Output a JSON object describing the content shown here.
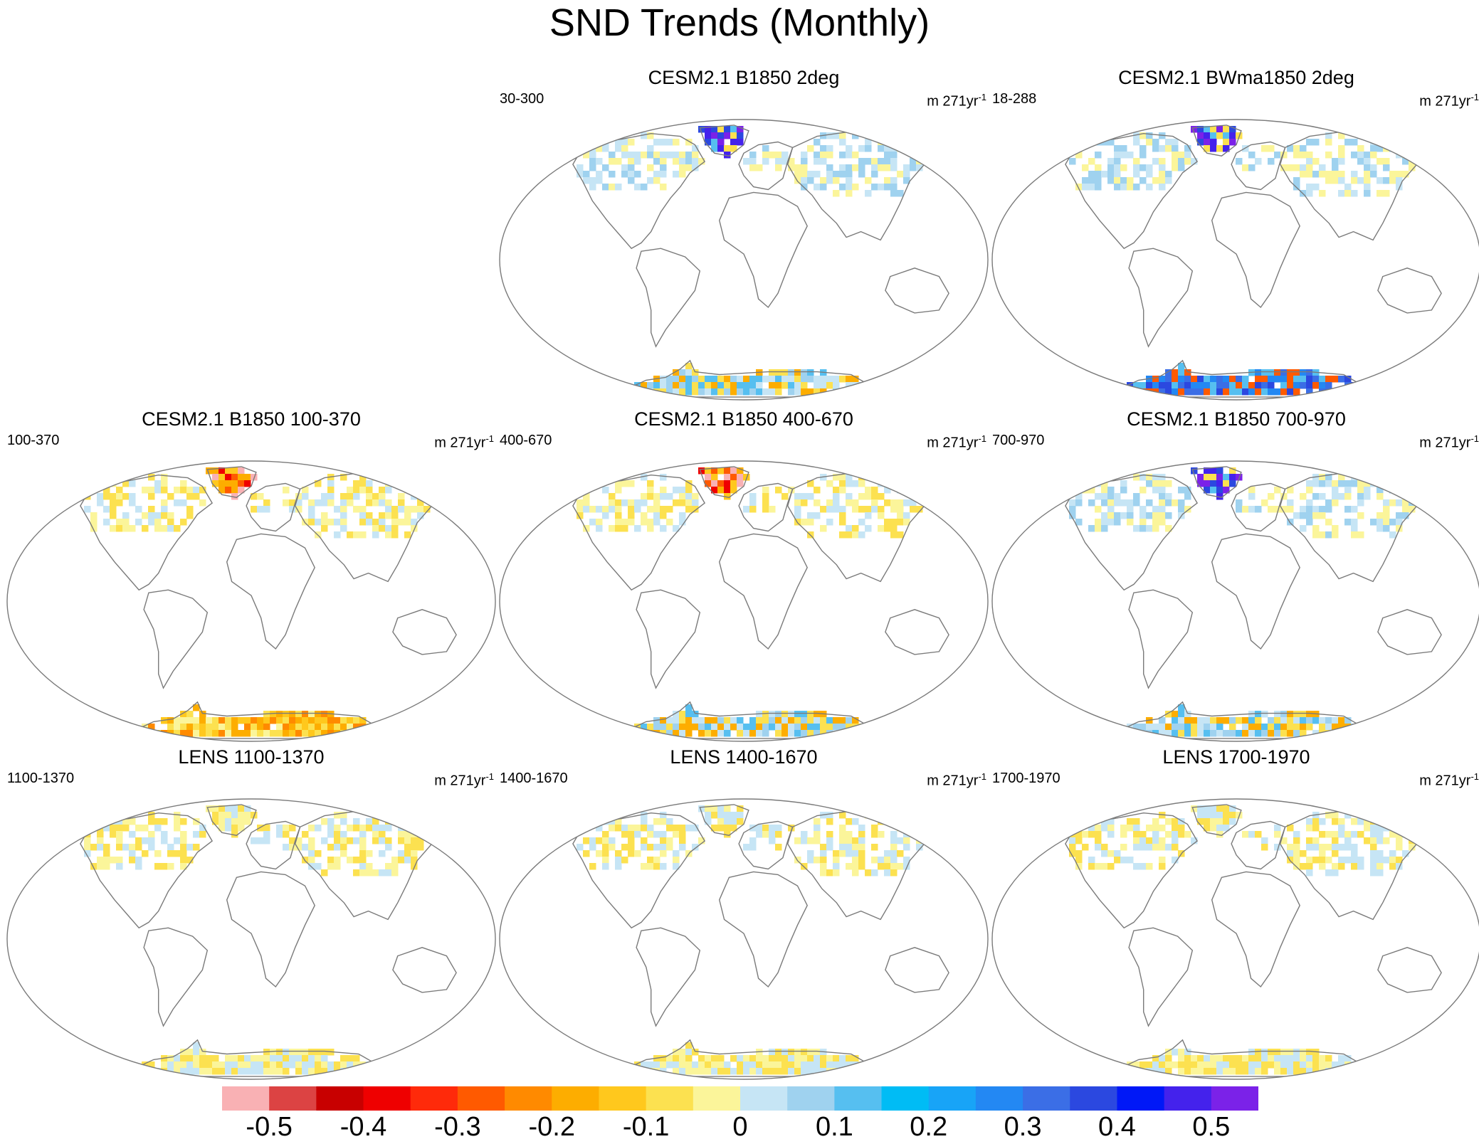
{
  "title": "SND Trends (Monthly)",
  "units_base": "m 271yr",
  "units_exp": "-1",
  "panels": [
    {
      "id": "p1",
      "title": "CESM2.1 B1850 2deg",
      "range": "30-300",
      "greenland": "blue",
      "antarctica": "mixed-orange-blue",
      "land": "mixed-blue"
    },
    {
      "id": "p2",
      "title": "CESM2.1 BWma1850 2deg",
      "range": "18-288",
      "greenland": "blue",
      "antarctica": "strong-blue",
      "land": "mixed-blue"
    },
    {
      "id": "p3",
      "title": "CESM2.1 B1850 100-370",
      "range": "100-370",
      "greenland": "red",
      "antarctica": "orange",
      "land": "mixed-yellow"
    },
    {
      "id": "p4",
      "title": "CESM2.1 B1850 400-670",
      "range": "400-670",
      "greenland": "red",
      "antarctica": "mixed-orange-blue",
      "land": "mixed-yellow"
    },
    {
      "id": "p5",
      "title": "CESM2.1 B1850 700-970",
      "range": "700-970",
      "greenland": "blue",
      "antarctica": "mixed-orange-blue",
      "land": "mixed-blue"
    },
    {
      "id": "p6",
      "title": "LENS 1100-1370",
      "range": "1100-1370",
      "greenland": "light",
      "antarctica": "light",
      "land": "light"
    },
    {
      "id": "p7",
      "title": "LENS 1400-1670",
      "range": "1400-1670",
      "greenland": "light",
      "antarctica": "light",
      "land": "light"
    },
    {
      "id": "p8",
      "title": "LENS 1700-1970",
      "range": "1700-1970",
      "greenland": "light",
      "antarctica": "light",
      "land": "light"
    }
  ],
  "colorbar": {
    "colors": [
      "#f9b1b4",
      "#dc4343",
      "#c80000",
      "#ef0000",
      "#ff2a0a",
      "#ff5a00",
      "#ff8a00",
      "#fdad00",
      "#ffc81d",
      "#fce150",
      "#fbf59a",
      "#c6e5f5",
      "#9fd2ef",
      "#56bff0",
      "#00bcf5",
      "#18a4f7",
      "#2388f3",
      "#3b6ee6",
      "#2b48e0",
      "#0018f7",
      "#4422ec",
      "#7b22e8"
    ],
    "labels": [
      "-0.5",
      "-0.4",
      "-0.3",
      "-0.2",
      "-0.1",
      "0",
      "0.1",
      "0.2",
      "0.3",
      "0.4",
      "0.5"
    ]
  }
}
